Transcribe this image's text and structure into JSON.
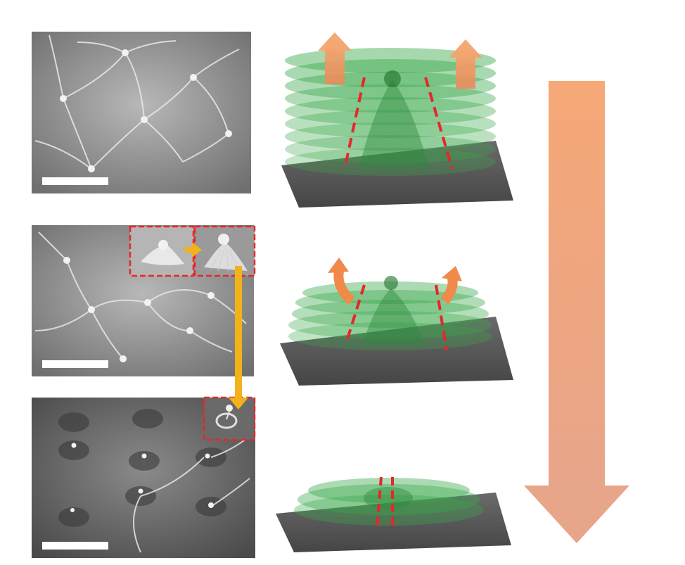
{
  "figure": {
    "title": "",
    "colors": {
      "background": "#ffffff",
      "sem_gray": "#8c8c8c",
      "substrate": "#5a5a5a",
      "layer_green": "#3aa84a",
      "dashed_red": "#e8262a",
      "arrow_orange": "#f4a36a",
      "yellow_connector": "#f3b21a",
      "scale_bar": "#ffffff"
    },
    "panels": [
      {
        "id": "sem-top",
        "scale_bar": true
      },
      {
        "id": "sem-middle",
        "scale_bar": true,
        "insets": 2
      },
      {
        "id": "sem-bottom",
        "scale_bar": true,
        "insets": 1
      }
    ],
    "schematics": [
      {
        "id": "schematic-top",
        "layers": 9,
        "up_arrows": 2
      },
      {
        "id": "schematic-middle",
        "layers": 5,
        "curved_arrows": 2
      },
      {
        "id": "schematic-bottom",
        "layers": 3
      }
    ],
    "process_arrow": {
      "direction": "down"
    }
  }
}
